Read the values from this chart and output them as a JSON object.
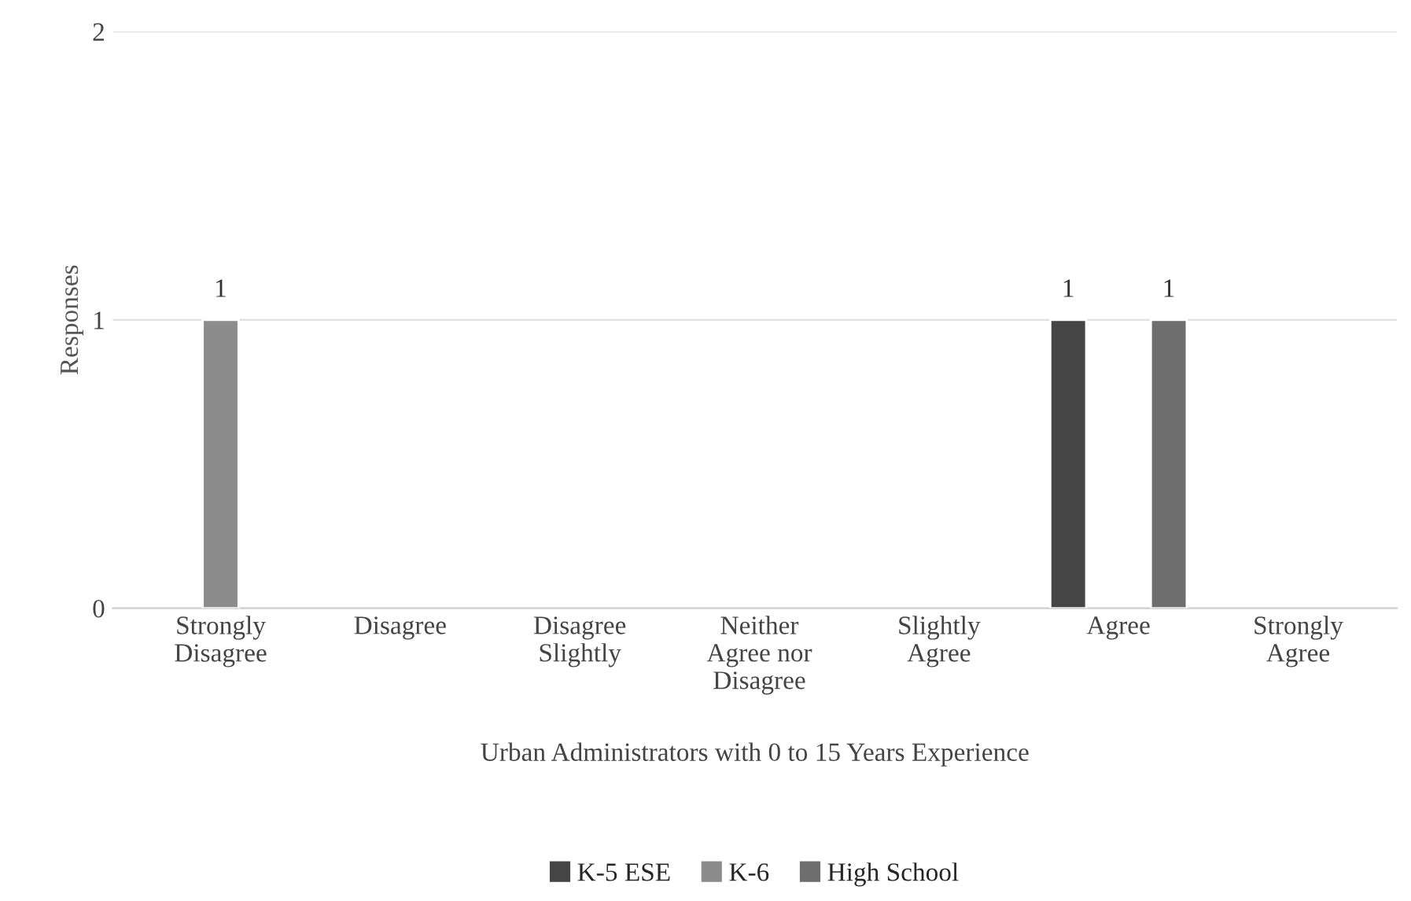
{
  "chart_data": {
    "type": "bar",
    "xlabel": "Urban Administrators with 0 to 15 Years Experience",
    "ylabel": "Responses",
    "categories": [
      "Strongly\nDisagree",
      "Disagree",
      "Disagree\nSlightly",
      "Neither\nAgree nor\nDisagree",
      "Slightly\nAgree",
      "Agree",
      "Strongly\nAgree"
    ],
    "series": [
      {
        "name": "K-5 ESE",
        "color": "#454545",
        "values": [
          null,
          null,
          null,
          null,
          null,
          1,
          null
        ],
        "value_labels": [
          null,
          null,
          null,
          null,
          null,
          "1",
          null
        ]
      },
      {
        "name": "K-6",
        "color": "#8c8c8c",
        "values": [
          1,
          null,
          null,
          null,
          null,
          null,
          null
        ],
        "value_labels": [
          "1",
          null,
          null,
          null,
          null,
          null,
          null
        ]
      },
      {
        "name": "High School",
        "color": "#6e6e6e",
        "values": [
          null,
          null,
          null,
          null,
          null,
          1,
          null
        ],
        "value_labels": [
          null,
          null,
          null,
          null,
          null,
          "1",
          null
        ]
      }
    ],
    "ylim": [
      0,
      2
    ],
    "yticks": [
      0,
      1,
      2
    ],
    "grid": "y",
    "legend": "bottom"
  }
}
